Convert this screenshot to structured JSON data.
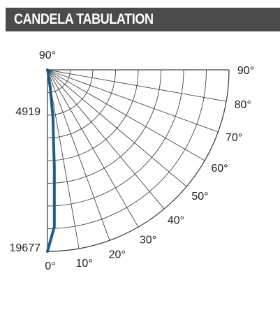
{
  "chart_data": {
    "type": "polar",
    "title": "CANDELA TABULATION",
    "center_label": "90°",
    "rlim": [
      0,
      19677
    ],
    "rgrid": [
      2460,
      4919,
      7379,
      9838,
      12298,
      14758,
      17217,
      19677
    ],
    "rticks": [
      4919,
      19677
    ],
    "angle_ticks": [
      {
        "value": 0,
        "label": "0°"
      },
      {
        "value": 10,
        "label": "10°"
      },
      {
        "value": 20,
        "label": "20°"
      },
      {
        "value": 30,
        "label": "30°"
      },
      {
        "value": 40,
        "label": "40°"
      },
      {
        "value": 50,
        "label": "50°"
      },
      {
        "value": 60,
        "label": "60°"
      },
      {
        "value": 70,
        "label": "70°"
      },
      {
        "value": 80,
        "label": "80°"
      },
      {
        "value": 90,
        "label": "90°"
      }
    ],
    "x": [
      0,
      2.5,
      4,
      5,
      6.5,
      9,
      12,
      20,
      30,
      40,
      50,
      60,
      70,
      80,
      90
    ],
    "values": [
      19677,
      17030,
      10600,
      7500,
      5300,
      1900,
      300,
      0,
      0,
      0,
      0,
      0,
      0,
      0,
      0
    ],
    "color": "#1d5d85",
    "grid": true
  }
}
